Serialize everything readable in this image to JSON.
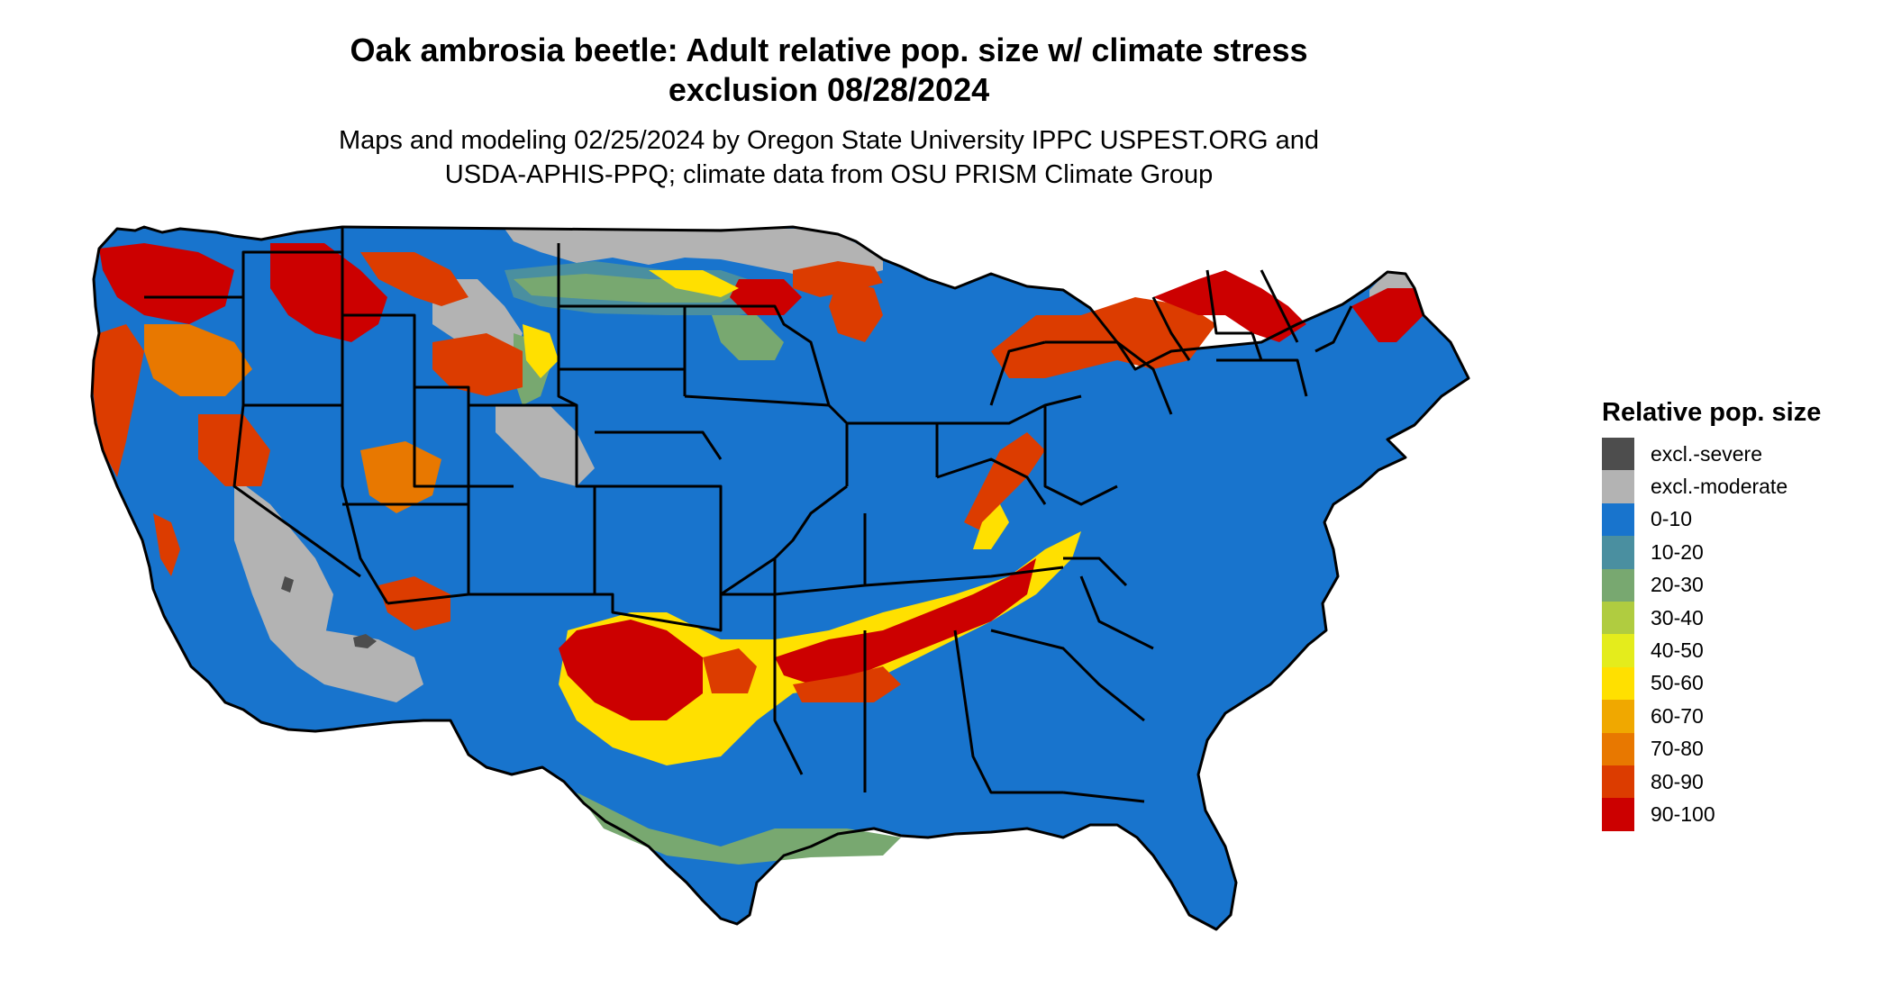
{
  "map": {
    "title_line1": "Oak ambrosia beetle: Adult relative pop. size w/ climate stress",
    "title_line2": "exclusion 08/28/2024",
    "subtitle_line1": "Maps and modeling 02/25/2024 by Oregon State University IPPC USPEST.ORG and",
    "subtitle_line2": "USDA-APHIS-PPQ; climate data from OSU PRISM Climate Group",
    "region": "Contiguous United States",
    "colors": {
      "excl_severe": "#4d4d4d",
      "excl_moderate": "#b3b3b3",
      "c0_10": "#1874cd",
      "c10_20": "#4a8fa0",
      "c20_30": "#78a870",
      "c30_40": "#b0cc40",
      "c40_50": "#e4ec1c",
      "c50_60": "#ffe000",
      "c60_70": "#f0a800",
      "c70_80": "#e87800",
      "c80_90": "#dc3c00",
      "c90_100": "#cc0000",
      "state_border": "#000000"
    }
  },
  "legend": {
    "title": "Relative pop. size",
    "items": [
      {
        "label": "excl.-severe",
        "color": "#4d4d4d"
      },
      {
        "label": "excl.-moderate",
        "color": "#b3b3b3"
      },
      {
        "label": "0-10",
        "color": "#1874cd"
      },
      {
        "label": "10-20",
        "color": "#4a8fa0"
      },
      {
        "label": "20-30",
        "color": "#78a870"
      },
      {
        "label": "30-40",
        "color": "#b0cc40"
      },
      {
        "label": "40-50",
        "color": "#e4ec1c"
      },
      {
        "label": "50-60",
        "color": "#ffe000"
      },
      {
        "label": "60-70",
        "color": "#f0a800"
      },
      {
        "label": "70-80",
        "color": "#e87800"
      },
      {
        "label": "80-90",
        "color": "#dc3c00"
      },
      {
        "label": "90-100",
        "color": "#cc0000"
      }
    ]
  }
}
